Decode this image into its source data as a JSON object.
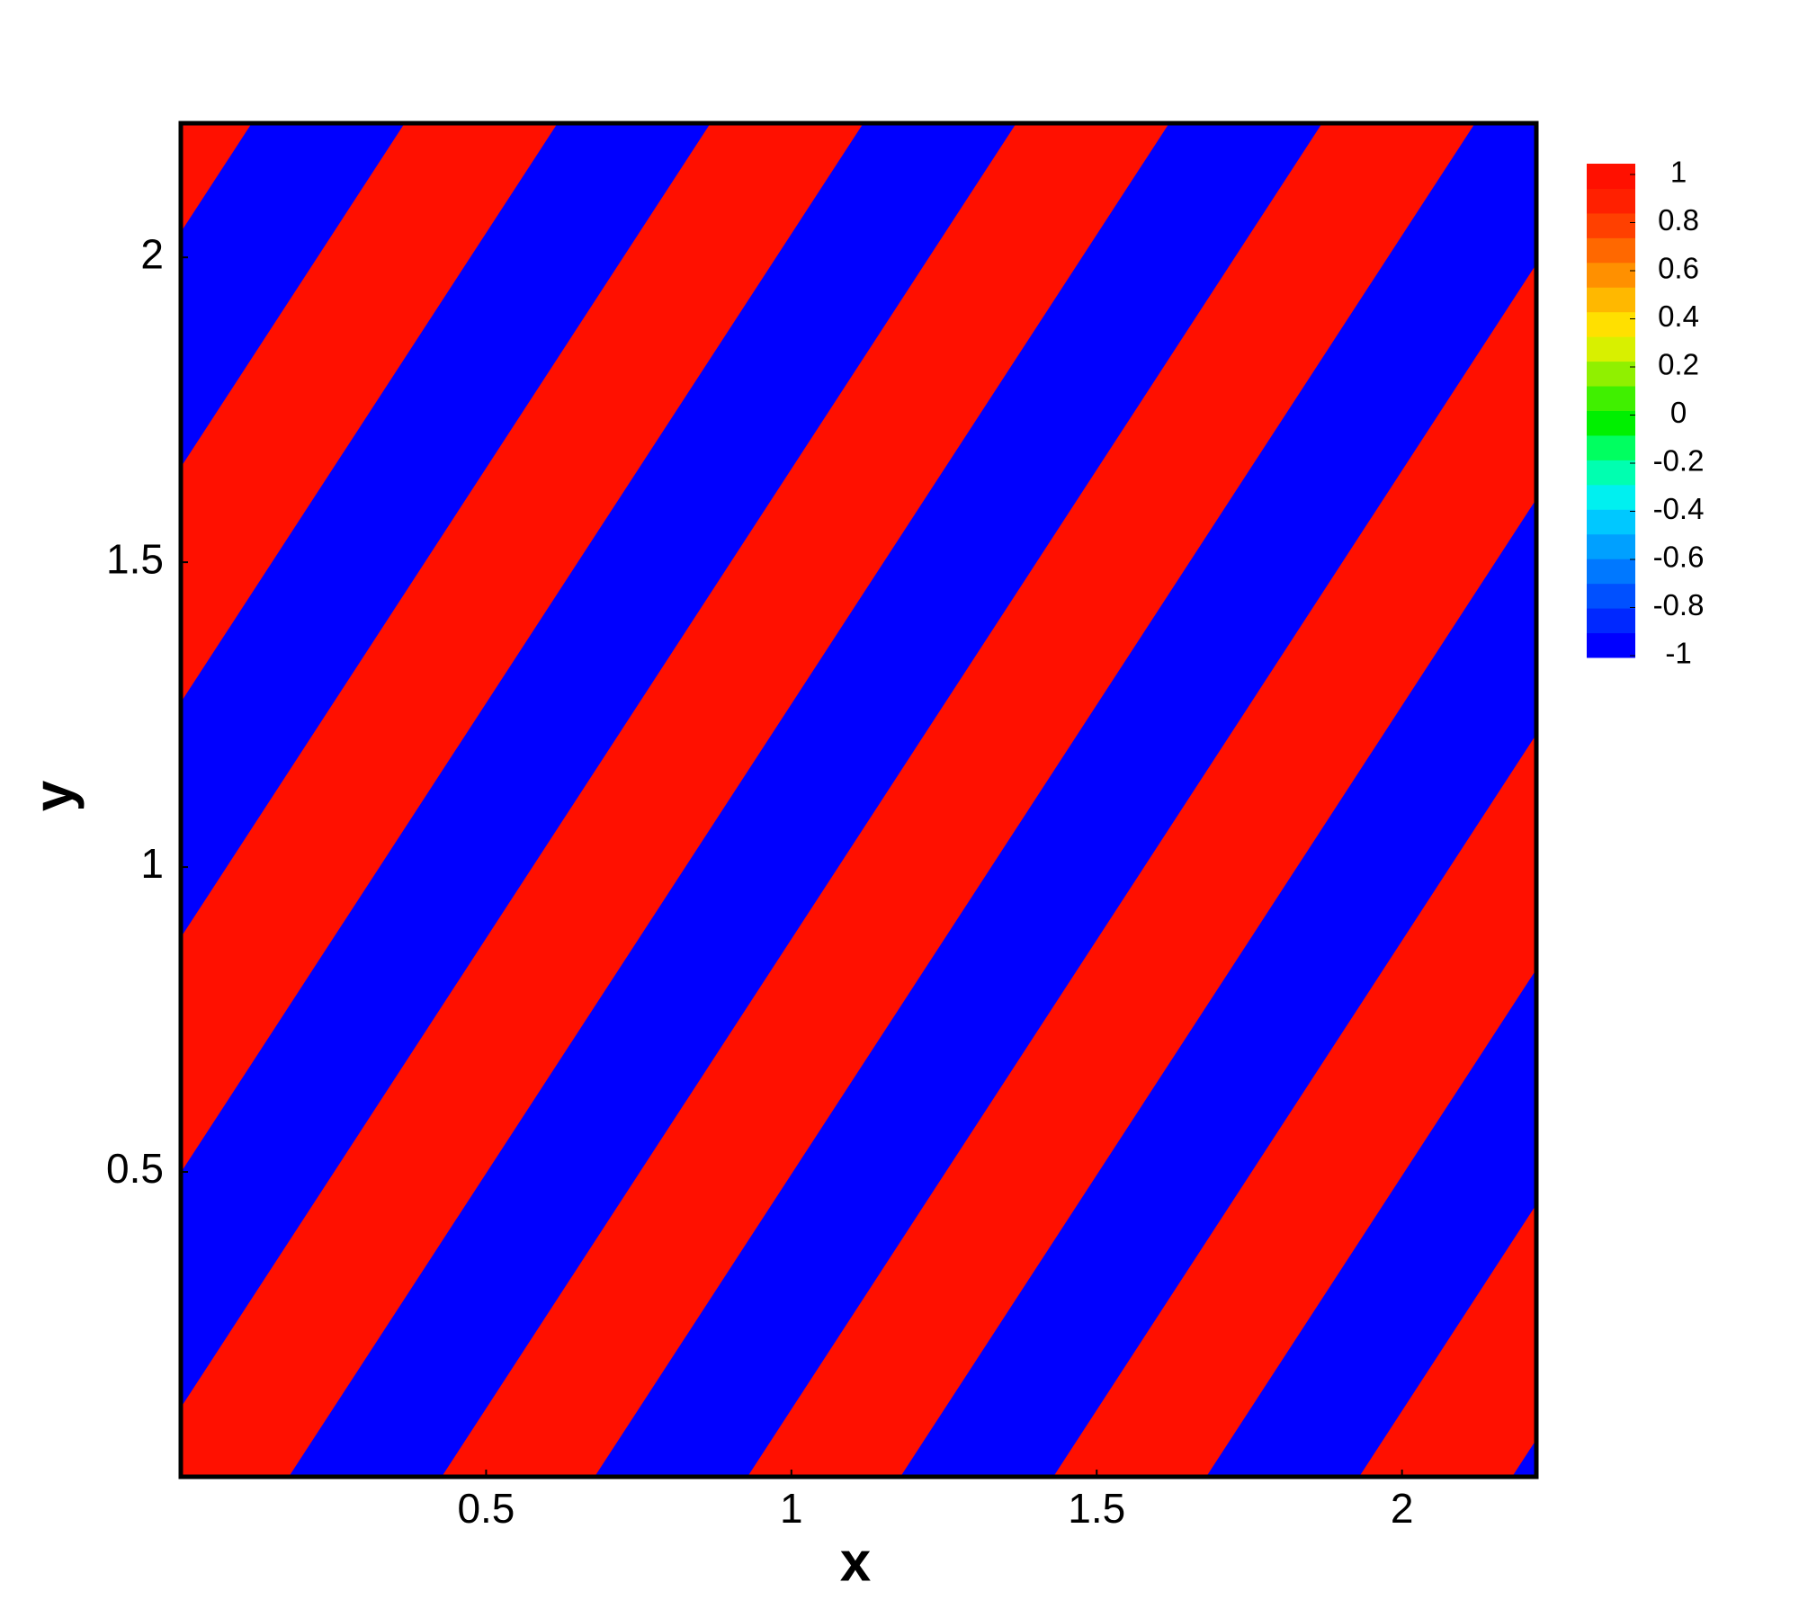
{
  "chart_data": {
    "type": "contour",
    "xlabel": "x",
    "ylabel": "y",
    "xlim": [
      0,
      2.22
    ],
    "ylim": [
      0,
      2.22
    ],
    "xticks": [
      0.5,
      1,
      1.5,
      2
    ],
    "yticks": [
      0.5,
      1,
      1.5,
      2
    ],
    "colorbar": {
      "clim": [
        -1,
        1
      ],
      "ticks": [
        1,
        0.8,
        0.6,
        0.4,
        0.2,
        0,
        -0.2,
        -0.4,
        -0.6,
        -0.8,
        -1
      ],
      "colors": [
        "#0000ff",
        "#0028ff",
        "#0050ff",
        "#0078ff",
        "#00a0ff",
        "#00c8ff",
        "#00f0f0",
        "#00ffb0",
        "#00ff60",
        "#00f000",
        "#40f000",
        "#90f000",
        "#d8f000",
        "#ffe000",
        "#ffb800",
        "#ff9000",
        "#ff6800",
        "#ff4000",
        "#ff2000",
        "#ff1000"
      ]
    }
  }
}
